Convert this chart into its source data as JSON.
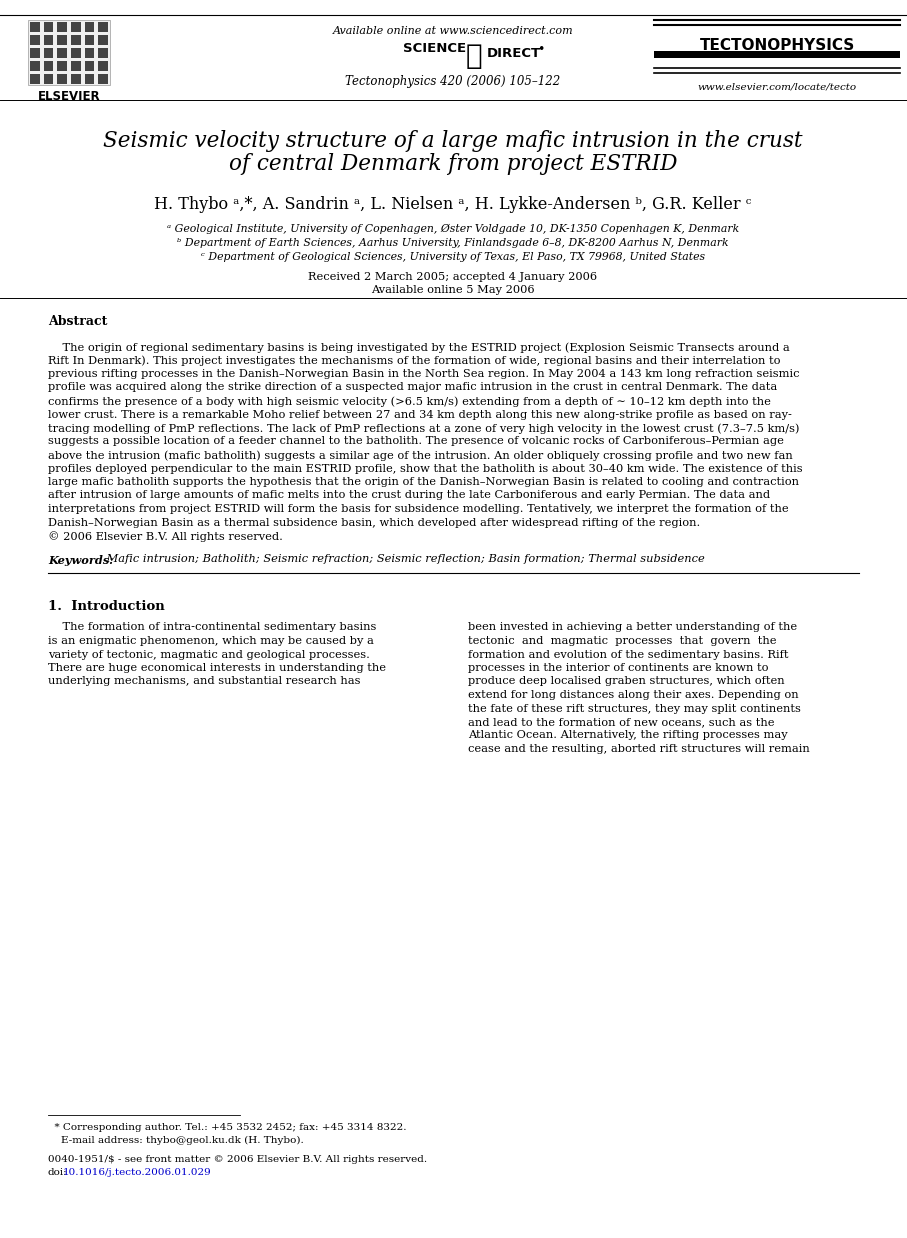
{
  "bg_color": "#ffffff",
  "available_online_text": "Available online at www.sciencedirect.com",
  "journal_ref": "Tectonophysics 420 (2006) 105–122",
  "tectonophysics_title": "TECTONOPHYSICS",
  "website": "www.elsevier.com/locate/tecto",
  "paper_title_line1": "Seismic velocity structure of a large mafic intrusion in the crust",
  "paper_title_line2": "of central Denmark from project ESTRID",
  "authors": "H. Thybo ᵃ,*, A. Sandrin ᵃ, L. Nielsen ᵃ, H. Lykke-Andersen ᵇ, G.R. Keller ᶜ",
  "affil_a": "ᵃ Geological Institute, University of Copenhagen, Øster Voldgade 10, DK-1350 Copenhagen K, Denmark",
  "affil_b": "ᵇ Department of Earth Sciences, Aarhus University, Finlandsgade 6–8, DK-8200 Aarhus N, Denmark",
  "affil_c": "ᶜ Department of Geological Sciences, University of Texas, El Paso, TX 79968, United States",
  "received_text": "Received 2 March 2005; accepted 4 January 2006",
  "available_text": "Available online 5 May 2006",
  "abstract_heading": "Abstract",
  "abstract_lines": [
    "    The origin of regional sedimentary basins is being investigated by the ESTRID project (Explosion Seismic Transects around a",
    "Rift In Denmark). This project investigates the mechanisms of the formation of wide, regional basins and their interrelation to",
    "previous rifting processes in the Danish–Norwegian Basin in the North Sea region. In May 2004 a 143 km long refraction seismic",
    "profile was acquired along the strike direction of a suspected major mafic intrusion in the crust in central Denmark. The data",
    "confirms the presence of a body with high seismic velocity (>6.5 km/s) extending from a depth of ∼ 10–12 km depth into the",
    "lower crust. There is a remarkable Moho relief between 27 and 34 km depth along this new along-strike profile as based on ray-",
    "tracing modelling of PmP reflections. The lack of PmP reflections at a zone of very high velocity in the lowest crust (7.3–7.5 km/s)",
    "suggests a possible location of a feeder channel to the batholith. The presence of volcanic rocks of Carboniferous–Permian age",
    "above the intrusion (mafic batholith) suggests a similar age of the intrusion. An older obliquely crossing profile and two new fan",
    "profiles deployed perpendicular to the main ESTRID profile, show that the batholith is about 30–40 km wide. The existence of this",
    "large mafic batholith supports the hypothesis that the origin of the Danish–Norwegian Basin is related to cooling and contraction",
    "after intrusion of large amounts of mafic melts into the crust during the late Carboniferous and early Permian. The data and",
    "interpretations from project ESTRID will form the basis for subsidence modelling. Tentatively, we interpret the formation of the",
    "Danish–Norwegian Basin as a thermal subsidence basin, which developed after widespread rifting of the region.",
    "© 2006 Elsevier B.V. All rights reserved."
  ],
  "keywords_label": "Keywords:",
  "keywords_text": " Mafic intrusion; Batholith; Seismic refraction; Seismic reflection; Basin formation; Thermal subsidence",
  "intro_heading": "1.  Introduction",
  "intro_col1_lines": [
    "    The formation of intra-continental sedimentary basins",
    "is an enigmatic phenomenon, which may be caused by a",
    "variety of tectonic, magmatic and geological processes.",
    "There are huge economical interests in understanding the",
    "underlying mechanisms, and substantial research has"
  ],
  "intro_col2_lines": [
    "been invested in achieving a better understanding of the",
    "tectonic  and  magmatic  processes  that  govern  the",
    "formation and evolution of the sedimentary basins. Rift",
    "processes in the interior of continents are known to",
    "produce deep localised graben structures, which often",
    "extend for long distances along their axes. Depending on",
    "the fate of these rift structures, they may split continents",
    "and lead to the formation of new oceans, such as the",
    "Atlantic Ocean. Alternatively, the rifting processes may",
    "cease and the resulting, aborted rift structures will remain"
  ],
  "footer_line1": "  * Corresponding author. Tel.: +45 3532 2452; fax: +45 3314 8322.",
  "footer_line2": "    E-mail address: thybo@geol.ku.dk (H. Thybo).",
  "footer_issn": "0040-1951/$ - see front matter © 2006 Elsevier B.V. All rights reserved.",
  "footer_doi_prefix": "doi:",
  "footer_doi_link": "10.1016/j.tecto.2006.01.029",
  "doi_color": "#0000cc"
}
